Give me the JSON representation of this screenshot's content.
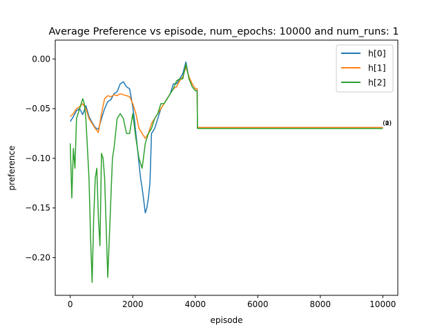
{
  "chart_data": {
    "type": "line",
    "title": "Average Preference vs episode, num_epochs: 10000 and num_runs: 1",
    "xlabel": "episode",
    "ylabel": "preference",
    "xlim": [
      -480,
      10480
    ],
    "ylim": [
      -0.238,
      0.019
    ],
    "xticks": [
      0,
      2000,
      4000,
      6000,
      8000,
      10000
    ],
    "yticks": [
      0.0,
      -0.05,
      -0.1,
      -0.15,
      -0.2
    ],
    "ytick_labels": [
      "0.00",
      "−0.05",
      "−0.10",
      "−0.15",
      "−0.20"
    ],
    "grid": false,
    "legend_position": "top-right",
    "series": [
      {
        "name": "h[0]",
        "color": "#1f77b4",
        "x": [
          0,
          100,
          200,
          300,
          400,
          500,
          600,
          700,
          800,
          900,
          1000,
          1100,
          1200,
          1300,
          1400,
          1500,
          1600,
          1700,
          1800,
          1900,
          2000,
          2050,
          2100,
          2150,
          2200,
          2250,
          2300,
          2350,
          2400,
          2450,
          2500,
          2550,
          2600,
          2700,
          2800,
          2900,
          3000,
          3100,
          3200,
          3300,
          3400,
          3500,
          3600,
          3700,
          3800,
          3900,
          4000,
          4060,
          4070,
          10000
        ],
        "y": [
          -0.063,
          -0.058,
          -0.052,
          -0.05,
          -0.056,
          -0.047,
          -0.058,
          -0.064,
          -0.069,
          -0.071,
          -0.06,
          -0.05,
          -0.043,
          -0.041,
          -0.035,
          -0.033,
          -0.025,
          -0.023,
          -0.028,
          -0.03,
          -0.048,
          -0.06,
          -0.075,
          -0.09,
          -0.105,
          -0.12,
          -0.13,
          -0.142,
          -0.155,
          -0.15,
          -0.14,
          -0.125,
          -0.075,
          -0.07,
          -0.06,
          -0.05,
          -0.045,
          -0.04,
          -0.035,
          -0.025,
          -0.025,
          -0.02,
          -0.015,
          -0.003,
          -0.02,
          -0.025,
          -0.03,
          -0.03,
          -0.069,
          -0.069
        ]
      },
      {
        "name": "h[1]",
        "color": "#ff7f0e",
        "x": [
          0,
          100,
          200,
          300,
          400,
          500,
          600,
          700,
          800,
          900,
          1000,
          1100,
          1200,
          1300,
          1400,
          1500,
          1600,
          1700,
          1800,
          1900,
          2000,
          2100,
          2200,
          2300,
          2400,
          2500,
          2600,
          2700,
          2800,
          2900,
          3000,
          3100,
          3200,
          3300,
          3400,
          3500,
          3600,
          3700,
          3800,
          3900,
          4000,
          4060,
          4070,
          10000
        ],
        "y": [
          -0.058,
          -0.055,
          -0.05,
          -0.048,
          -0.045,
          -0.05,
          -0.06,
          -0.065,
          -0.07,
          -0.074,
          -0.055,
          -0.04,
          -0.037,
          -0.038,
          -0.036,
          -0.037,
          -0.035,
          -0.036,
          -0.037,
          -0.038,
          -0.045,
          -0.055,
          -0.07,
          -0.075,
          -0.08,
          -0.075,
          -0.065,
          -0.06,
          -0.055,
          -0.05,
          -0.045,
          -0.04,
          -0.035,
          -0.03,
          -0.028,
          -0.022,
          -0.018,
          -0.008,
          -0.018,
          -0.025,
          -0.03,
          -0.03,
          -0.069,
          -0.069
        ]
      },
      {
        "name": "h[2]",
        "color": "#2ca02c",
        "x": [
          0,
          50,
          100,
          150,
          200,
          300,
          400,
          450,
          500,
          600,
          650,
          700,
          750,
          800,
          850,
          900,
          950,
          1000,
          1050,
          1100,
          1150,
          1200,
          1250,
          1300,
          1350,
          1400,
          1500,
          1600,
          1700,
          1800,
          1900,
          2000,
          2100,
          2200,
          2300,
          2400,
          2500,
          2600,
          2700,
          2800,
          2900,
          3000,
          3100,
          3200,
          3300,
          3400,
          3500,
          3600,
          3700,
          3800,
          3900,
          4000,
          4060,
          4070,
          10000
        ],
        "y": [
          -0.085,
          -0.14,
          -0.09,
          -0.11,
          -0.06,
          -0.05,
          -0.04,
          -0.045,
          -0.06,
          -0.12,
          -0.18,
          -0.225,
          -0.16,
          -0.12,
          -0.11,
          -0.16,
          -0.188,
          -0.095,
          -0.1,
          -0.12,
          -0.17,
          -0.22,
          -0.18,
          -0.14,
          -0.1,
          -0.09,
          -0.06,
          -0.055,
          -0.06,
          -0.075,
          -0.075,
          -0.055,
          -0.08,
          -0.1,
          -0.11,
          -0.085,
          -0.075,
          -0.07,
          -0.06,
          -0.055,
          -0.045,
          -0.045,
          -0.04,
          -0.035,
          -0.03,
          -0.022,
          -0.02,
          -0.02,
          -0.005,
          -0.02,
          -0.028,
          -0.032,
          -0.032,
          -0.07,
          -0.07
        ]
      }
    ],
    "annotations": [
      {
        "text": "(0)",
        "x": 10000,
        "y": -0.0665
      },
      {
        "text": "(1)",
        "x": 10000,
        "y": -0.0665
      },
      {
        "text": "(2)",
        "x": 10000,
        "y": -0.0665
      }
    ]
  }
}
